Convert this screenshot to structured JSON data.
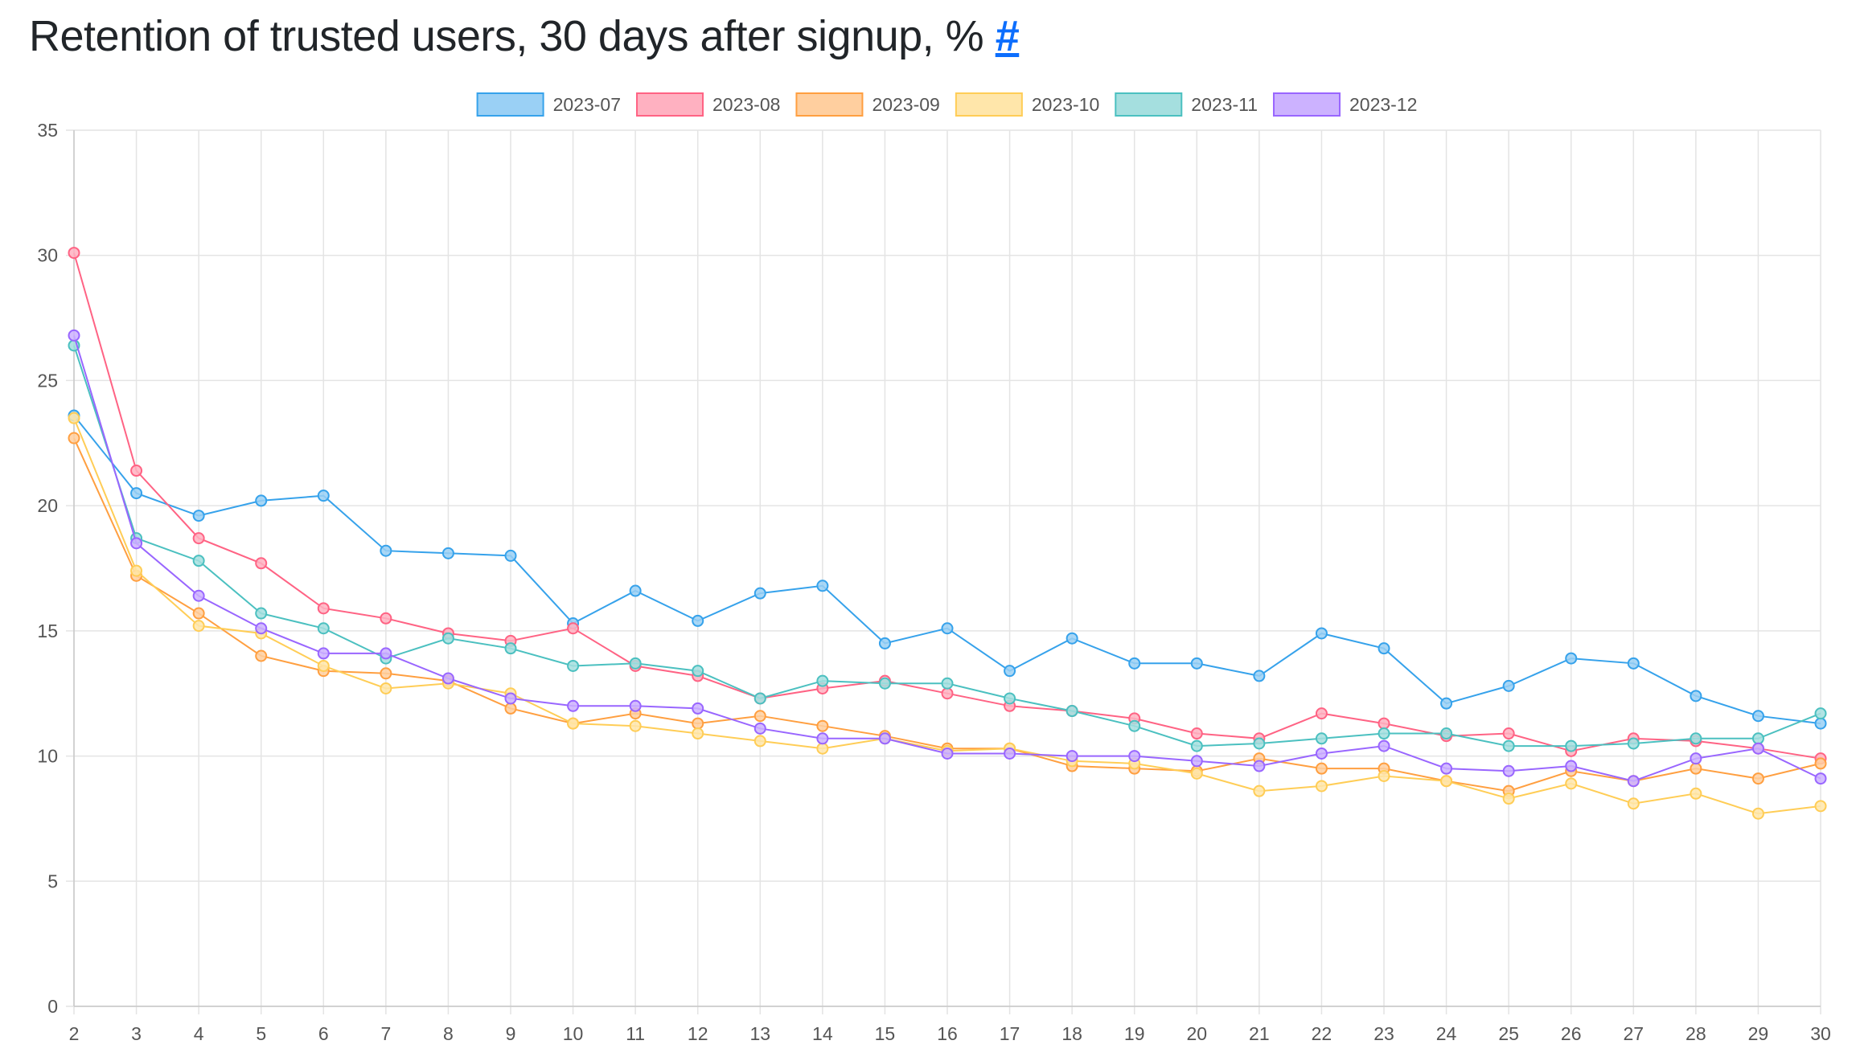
{
  "page": {
    "title": "Retention of trusted users, 30 days after signup, %",
    "anchor": "#"
  },
  "chart_data": {
    "type": "line",
    "title": "",
    "xlabel": "",
    "ylabel": "",
    "x": [
      2,
      3,
      4,
      5,
      6,
      7,
      8,
      9,
      10,
      11,
      12,
      13,
      14,
      15,
      16,
      17,
      18,
      19,
      20,
      21,
      22,
      23,
      24,
      25,
      26,
      27,
      28,
      29,
      30
    ],
    "ylim": [
      0,
      35
    ],
    "yticks": [
      0,
      5,
      10,
      15,
      20,
      25,
      30,
      35
    ],
    "grid": true,
    "legend_position": "top",
    "series": [
      {
        "name": "2023-07",
        "color": "#36a2eb",
        "fill": "#9ad0f5",
        "values": [
          23.6,
          20.5,
          19.6,
          20.2,
          20.4,
          18.2,
          18.1,
          18.0,
          15.3,
          16.6,
          15.4,
          16.5,
          16.8,
          14.5,
          15.1,
          13.4,
          14.7,
          13.7,
          13.7,
          13.2,
          14.9,
          14.3,
          12.1,
          12.8,
          13.9,
          13.7,
          12.4,
          11.6,
          11.3
        ]
      },
      {
        "name": "2023-08",
        "color": "#ff6384",
        "fill": "#ffb1c1",
        "values": [
          30.1,
          21.4,
          18.7,
          17.7,
          15.9,
          15.5,
          14.9,
          14.6,
          15.1,
          13.6,
          13.2,
          12.3,
          12.7,
          13.0,
          12.5,
          12.0,
          11.8,
          11.5,
          10.9,
          10.7,
          11.7,
          11.3,
          10.8,
          10.9,
          10.2,
          10.7,
          10.6,
          10.3,
          9.9
        ]
      },
      {
        "name": "2023-09",
        "color": "#ff9f40",
        "fill": "#ffcf9f",
        "values": [
          22.7,
          17.2,
          15.7,
          14.0,
          13.4,
          13.3,
          13.0,
          11.9,
          11.3,
          11.7,
          11.3,
          11.6,
          11.2,
          10.8,
          10.3,
          10.3,
          9.6,
          9.5,
          9.4,
          9.9,
          9.5,
          9.5,
          9.0,
          8.6,
          9.4,
          9.0,
          9.5,
          9.1,
          9.7
        ]
      },
      {
        "name": "2023-10",
        "color": "#ffcd56",
        "fill": "#ffe6aa",
        "values": [
          23.5,
          17.4,
          15.2,
          14.9,
          13.6,
          12.7,
          12.9,
          12.5,
          11.3,
          11.2,
          10.9,
          10.6,
          10.3,
          10.7,
          10.2,
          10.3,
          9.8,
          9.7,
          9.3,
          8.6,
          8.8,
          9.2,
          9.0,
          8.3,
          8.9,
          8.1,
          8.5,
          7.7,
          8.0
        ]
      },
      {
        "name": "2023-11",
        "color": "#4bc0c0",
        "fill": "#a5dfdf",
        "values": [
          26.4,
          18.7,
          17.8,
          15.7,
          15.1,
          13.9,
          14.7,
          14.3,
          13.6,
          13.7,
          13.4,
          12.3,
          13.0,
          12.9,
          12.9,
          12.3,
          11.8,
          11.2,
          10.4,
          10.5,
          10.7,
          10.9,
          10.9,
          10.4,
          10.4,
          10.5,
          10.7,
          10.7,
          11.7
        ]
      },
      {
        "name": "2023-12",
        "color": "#9966ff",
        "fill": "#ccb2ff",
        "values": [
          26.8,
          18.5,
          16.4,
          15.1,
          14.1,
          14.1,
          13.1,
          12.3,
          12.0,
          12.0,
          11.9,
          11.1,
          10.7,
          10.7,
          10.1,
          10.1,
          10.0,
          10.0,
          9.8,
          9.6,
          10.1,
          10.4,
          9.5,
          9.4,
          9.6,
          9.0,
          9.9,
          10.3,
          9.1
        ]
      }
    ]
  }
}
